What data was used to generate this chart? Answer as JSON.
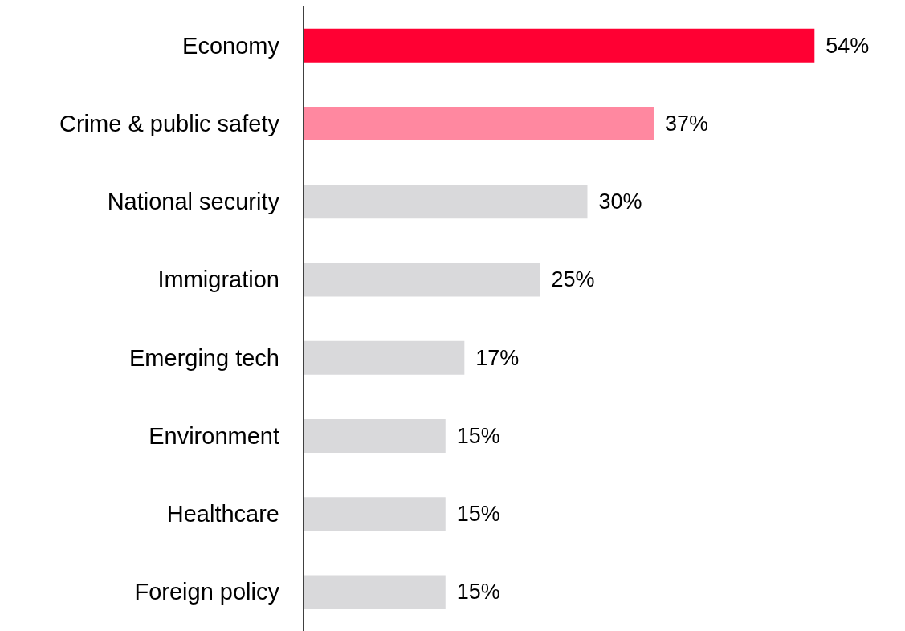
{
  "chart_data": {
    "type": "bar",
    "orientation": "horizontal",
    "categories": [
      "Economy",
      "Crime & public safety",
      "National security",
      "Immigration",
      "Emerging tech",
      "Environment",
      "Healthcare",
      "Foreign policy"
    ],
    "values": [
      54,
      37,
      30,
      25,
      17,
      15,
      15,
      15
    ],
    "colors": [
      "#ff0033",
      "#ff88a0",
      "#d9d9db",
      "#d9d9db",
      "#d9d9db",
      "#d9d9db",
      "#d9d9db",
      "#d9d9db"
    ],
    "value_labels": [
      "54%",
      "37%",
      "30%",
      "25%",
      "17%",
      "15%",
      "15%",
      "15%"
    ]
  }
}
